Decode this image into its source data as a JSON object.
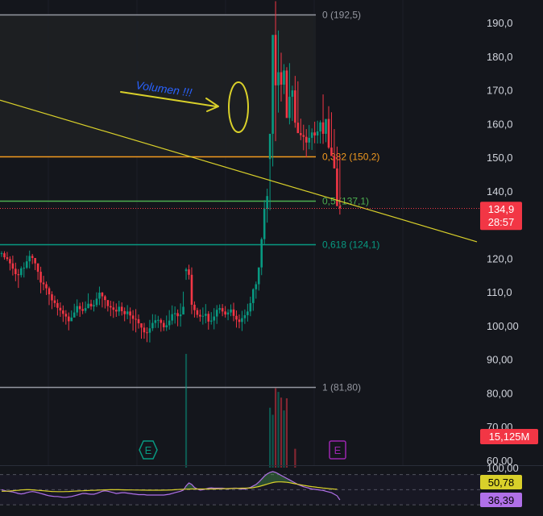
{
  "chart_data": {
    "type": "candlestick",
    "price_axis": {
      "ylim": [
        57.8,
        195.8
      ],
      "tick_values": [
        190,
        180,
        170,
        160,
        150,
        140,
        120,
        110,
        100,
        90,
        80,
        70,
        60
      ],
      "tick_labels": [
        "190,0",
        "180,0",
        "170,0",
        "160,0",
        "150,0",
        "140,0",
        "120,0",
        "110,0",
        "100,00",
        "90,00",
        "80,00",
        "70,00",
        "60,00"
      ]
    },
    "fib_levels": [
      {
        "value": 192.5,
        "label": "0 (192,5)",
        "color": "#9598a1"
      },
      {
        "value": 150.2,
        "label": "0,382 (150,2)",
        "color": "#f29a1f"
      },
      {
        "value": 137.1,
        "label": "0,5 (137,1)",
        "color": "#4caf50"
      },
      {
        "value": 124.1,
        "label": "0,618 (124,1)",
        "color": "#089981"
      },
      {
        "value": 81.8,
        "label": "1 (81,80)",
        "color": "#9598a1"
      }
    ],
    "current_price": {
      "value": 134.9,
      "label": "134,9",
      "countdown": "28:57",
      "color": "#f23645"
    },
    "volume_badge": {
      "label": "15,125M",
      "color": "#f23645"
    },
    "annotation": {
      "text": "Volumen !!!",
      "color": "#2962ff"
    },
    "trendline_color": "#d9d02a",
    "candles": [
      [
        121.5,
        121.5,
        120.3,
        119.8,
        118.5,
        116.9,
        115.3,
        115.0,
        117.0,
        117.2,
        119.1,
        120.7,
        120.1,
        118.5,
        116.0,
        112.8,
        112.3,
        111.1,
        109.3,
        107.5,
        106.7,
        105.3,
        104.5,
        103.5,
        102.7,
        101.3,
        102.4,
        103.9,
        105.8,
        104.9,
        104.4,
        105.2,
        106.5,
        105.7,
        106.1,
        108.0,
        109.8,
        108.7,
        107.6,
        105.8,
        105.4,
        104.7,
        104.2,
        105.6,
        104.3,
        103.4,
        104.2,
        103.0,
        102.0,
        101.9,
        100.7,
        99.4,
        98.0,
        97.9,
        99.2,
        100.8,
        101.6,
        101.7,
        100.8,
        99.5,
        100.1,
        101.5,
        103.4,
        103.7,
        102.8,
        103.3,
        116.2,
        116.7,
        115.1,
        106.2,
        104.6,
        103.2,
        102.7,
        102.9,
        103.5,
        101.2,
        101.5,
        102.7,
        104.7,
        105.2,
        104.2,
        103.3,
        103.9,
        104.8,
        102.9,
        101.8,
        101.1,
        102.2,
        103.1,
        104.2,
        106.7,
        110.8,
        112.3,
        117.3,
        125.7,
        134.7,
        149.5,
        157.0,
        186.4,
        171.4,
        175.3,
        171.6,
        175.8,
        161.7,
        168.0,
        169.9,
        160.3,
        157.2,
        156.6,
        156.1,
        154.4,
        155.8,
        157.4,
        156.5,
        157.7,
        160.4,
        157.0,
        161.4,
        152.9,
        150.4,
        146.7,
        135.5
      ],
      [
        121.5,
        120.3,
        119.8,
        118.5,
        116.9,
        115.3,
        115.0,
        117.0,
        117.2,
        119.1,
        120.7,
        120.1,
        118.5,
        116.0,
        112.8,
        112.3,
        111.1,
        109.3,
        107.5,
        106.7,
        105.3,
        104.5,
        103.5,
        102.7,
        101.3,
        102.4,
        103.9,
        105.8,
        104.9,
        104.4,
        105.2,
        106.5,
        105.7,
        106.1,
        108.0,
        109.8,
        108.7,
        107.6,
        105.8,
        105.4,
        104.7,
        104.2,
        105.6,
        104.3,
        103.4,
        104.2,
        103.0,
        102.0,
        101.9,
        100.7,
        99.4,
        98.0,
        97.9,
        99.2,
        100.8,
        101.6,
        101.7,
        100.8,
        99.5,
        100.1,
        101.5,
        103.4,
        103.7,
        102.8,
        103.3,
        105.6,
        116.7,
        115.1,
        106.2,
        104.6,
        103.2,
        102.7,
        102.9,
        103.5,
        101.2,
        101.5,
        102.7,
        104.7,
        105.2,
        104.2,
        103.3,
        103.9,
        104.8,
        102.9,
        101.8,
        101.1,
        102.2,
        103.1,
        104.2,
        106.7,
        110.8,
        112.3,
        117.3,
        125.7,
        134.7,
        138.5,
        157.0,
        186.4,
        171.4,
        175.3,
        171.6,
        175.8,
        161.7,
        168.0,
        169.9,
        160.3,
        157.2,
        156.6,
        156.1,
        154.4,
        155.8,
        157.4,
        156.5,
        157.7,
        160.4,
        157.0,
        161.4,
        152.9,
        150.4,
        146.7,
        135.5,
        134.9
      ],
      [
        122.1,
        122.1,
        121.9,
        120.6,
        120.8,
        118.7,
        116.8,
        117.6,
        118.8,
        120.8,
        122.3,
        121.3,
        119.8,
        117.4,
        117.5,
        114.8,
        113.1,
        111.6,
        110.2,
        108.9,
        107.8,
        106.9,
        106.0,
        104.6,
        103.9,
        104.5,
        106.5,
        107.8,
        106.8,
        107.0,
        107.2,
        109.6,
        107.7,
        107.6,
        109.9,
        111.6,
        110.0,
        109.1,
        107.2,
        107.4,
        107.2,
        106.6,
        107.4,
        106.9,
        105.4,
        106.1,
        105.4,
        104.6,
        104.9,
        103.3,
        100.5,
        100.8,
        99.5,
        101.7,
        103.4,
        103.3,
        102.9,
        102.2,
        101.6,
        103.0,
        104.6,
        106.0,
        105.7,
        104.8,
        106.6,
        110.1,
        117.2,
        118.1,
        117.3,
        107.2,
        105.3,
        104.8,
        105.4,
        106.4,
        104.3,
        104.0,
        105.2,
        106.1,
        106.3,
        106.4,
        105.8,
        104.9,
        106.3,
        106.8,
        104.5,
        103.3,
        104.4,
        104.8,
        106.5,
        108.6,
        111.1,
        113.1,
        114.6,
        126.2,
        137.3,
        140.7,
        154.5,
        160.5,
        196.4,
        187.7,
        181.1,
        177.7,
        176.8,
        178.0,
        171.3,
        174.2,
        172.6,
        161.5,
        159.7,
        158.4,
        159.6,
        158.6,
        160.6,
        160.9,
        161.0,
        168.7,
        161.1,
        165.2,
        163.4,
        158.4,
        153.2,
        150.3,
        137.1
      ],
      [
        120.4,
        119.6,
        119.2,
        116.4,
        114.9,
        113.2,
        111.2,
        114.3,
        114.3,
        116.8,
        117.0,
        118.3,
        116.5,
        113.6,
        109.6,
        110.5,
        109.1,
        106.1,
        104.9,
        105.5,
        103.0,
        102.6,
        101.1,
        100.3,
        98.6,
        101.5,
        103.0,
        102.9,
        102.6,
        103.4,
        103.7,
        105.1,
        104.7,
        104.2,
        105.5,
        106.1,
        105.4,
        105.1,
        104.2,
        102.8,
        102.3,
        102.6,
        102.9,
        103.0,
        101.3,
        101.9,
        100.6,
        98.5,
        98.0,
        99.1,
        96.1,
        96.1,
        95.1,
        95.0,
        98.4,
        99.3,
        99.3,
        98.2,
        98.4,
        98.4,
        98.8,
        100.3,
        100.6,
        99.8,
        99.7,
        104.1,
        113.6,
        113.7,
        103.4,
        102.4,
        102.3,
        101.2,
        100.3,
        100.7,
        98.8,
        100.3,
        98.9,
        100.5,
        103.6,
        102.8,
        102.4,
        101.6,
        102.8,
        101.3,
        99.4,
        99.2,
        98.4,
        100.5,
        101.2,
        102.8,
        104.4,
        108.0,
        110.4,
        115.0,
        124.2,
        130.6,
        134.3,
        147.3,
        154.8,
        163.3,
        166.6,
        168.8,
        165.9,
        159.8,
        160.8,
        158.8,
        158.1,
        155.1,
        152.1,
        150.0,
        152.4,
        152.2,
        154.2,
        154.1,
        154.1,
        154.0,
        154.5,
        152.5,
        151.0,
        147.0,
        143.1,
        133.0
      ]
    ],
    "volume": {
      "values": [
        12.7,
        13.9,
        14.6,
        14.6,
        11.8,
        13.6,
        13.2,
        13.5,
        10.6,
        11.2,
        11.8,
        14.4,
        12.1,
        12.4,
        14.4,
        10.9,
        11.0,
        13.6,
        12.0,
        13.8,
        11.3,
        13.2,
        11.5,
        13.2,
        11.7,
        14.2,
        10.0,
        12.4,
        11.8,
        11.8,
        12.5,
        12.5,
        14.0,
        10.7,
        12.5,
        11.7,
        14.3,
        13.2,
        10.3,
        12.6,
        13.0,
        11.4,
        11.9,
        10.6,
        12.2,
        14.2,
        13.0,
        10.8,
        12.1,
        14.6,
        11.2,
        10.1,
        10.8,
        12.6,
        11.3,
        10.4,
        13.9,
        14.0,
        12.3,
        10.7,
        11.9,
        11.6,
        14.9,
        12.1,
        13.3,
        15.0,
        91.6,
        12.6,
        13.5,
        16.7,
        22.5,
        26.6,
        13.1,
        11.8,
        15.2,
        18.8,
        15.0,
        12.5,
        10.8,
        15.3,
        11.2,
        13.6,
        15.3,
        12.6,
        11.8,
        10.3,
        13.1,
        11.7,
        14.3,
        13.9,
        17.6,
        25.4,
        28.8,
        33.6,
        44.0,
        52.5,
        75.6,
        73.5,
        81.4,
        80.3,
        78.6,
        74.8,
        78.4,
        41.0,
        46.6,
        63.4,
        38.0,
        37.7,
        25.7,
        32.3,
        20.0,
        18.3,
        17.8,
        18.5,
        12.2,
        13.8,
        18.2,
        18.5,
        22.4,
        22.1,
        20.3,
        15.1
      ],
      "ylim": [
        57.8,
        195.8
      ]
    },
    "oscillator": {
      "line1": {
        "label": "50,78",
        "color": "#d9d02a",
        "values": [
          48,
          48,
          48.1,
          48.3,
          48.6,
          49,
          49.3,
          49.7,
          49.9,
          50,
          50,
          49.8,
          49.5,
          49.2,
          48.9,
          48.6,
          48.3,
          48,
          47.7,
          47.5,
          47.4,
          47.4,
          47.4,
          47.5,
          47.7,
          47.9,
          48.1,
          48.3,
          48.5,
          48.6,
          48.8,
          48.9,
          49.1,
          49.2,
          49.4,
          49.6,
          49.7,
          49.8,
          49.9,
          50,
          50,
          50,
          50,
          49.9,
          49.8,
          49.8,
          49.7,
          49.7,
          49.6,
          49.6,
          49.5,
          49.5,
          49.4,
          49.4,
          49.4,
          49.4,
          49.4,
          49.4,
          49.5,
          49.5,
          49.6,
          49.8,
          50,
          50.2,
          50.4,
          50.6,
          50.8,
          50.9,
          51,
          51,
          51,
          51,
          51,
          51,
          51,
          51,
          51,
          51.1,
          51.2,
          51.3,
          51.4,
          51.5,
          51.6,
          51.7,
          51.8,
          51.9,
          52,
          52,
          52.1,
          52.3,
          52.7,
          53.4,
          54.2,
          55.2,
          56.3,
          57.5,
          58.6,
          59.5,
          60.1,
          60.4,
          60.4,
          60.2,
          59.8,
          59.3,
          58.6,
          57.9,
          57.2,
          56.5,
          55.8,
          55.2,
          54.6,
          54.1,
          53.6,
          53.1,
          52.7,
          52.3,
          51.9,
          51.5,
          51.2,
          50.9,
          50.8
        ]
      },
      "line2": {
        "label": "36,39",
        "color": "#b070e8",
        "values": [
          50,
          49,
          48,
          47.5,
          47,
          46,
          45,
          44.5,
          45,
          46,
          47,
          47.5,
          47,
          46,
          45,
          44,
          43,
          42,
          41.5,
          41,
          41,
          40.5,
          40,
          40,
          40.5,
          41,
          42,
          43,
          44,
          45,
          45,
          44.5,
          44,
          44,
          45,
          46.5,
          48,
          48.5,
          48,
          47,
          46,
          45,
          45.5,
          46,
          46,
          45.5,
          45,
          44.5,
          44,
          43.5,
          43.5,
          43.5,
          43,
          43,
          43,
          43,
          43,
          43,
          43,
          43.5,
          44,
          45,
          46,
          47,
          48,
          49.5,
          55,
          59,
          57,
          53,
          51,
          49.5,
          50,
          51,
          52,
          52.5,
          52,
          52,
          52,
          52,
          51.5,
          51,
          51.5,
          52,
          52,
          51.5,
          51,
          51,
          52,
          53,
          55,
          57,
          60,
          64,
          68,
          71,
          73,
          74,
          73,
          71,
          69,
          67,
          65,
          63,
          61,
          59,
          57,
          55.5,
          54,
          53,
          52,
          51,
          50.5,
          50,
          49.5,
          49,
          48,
          47,
          46,
          44,
          42,
          36.4
        ]
      },
      "ylim": [
        28,
        75
      ]
    },
    "colors": {
      "up": "#089981",
      "down": "#f23645"
    },
    "earnings_markers": [
      {
        "label": "E",
        "color": "#089981"
      },
      {
        "label": "E",
        "color": "#9c27b0"
      }
    ]
  }
}
